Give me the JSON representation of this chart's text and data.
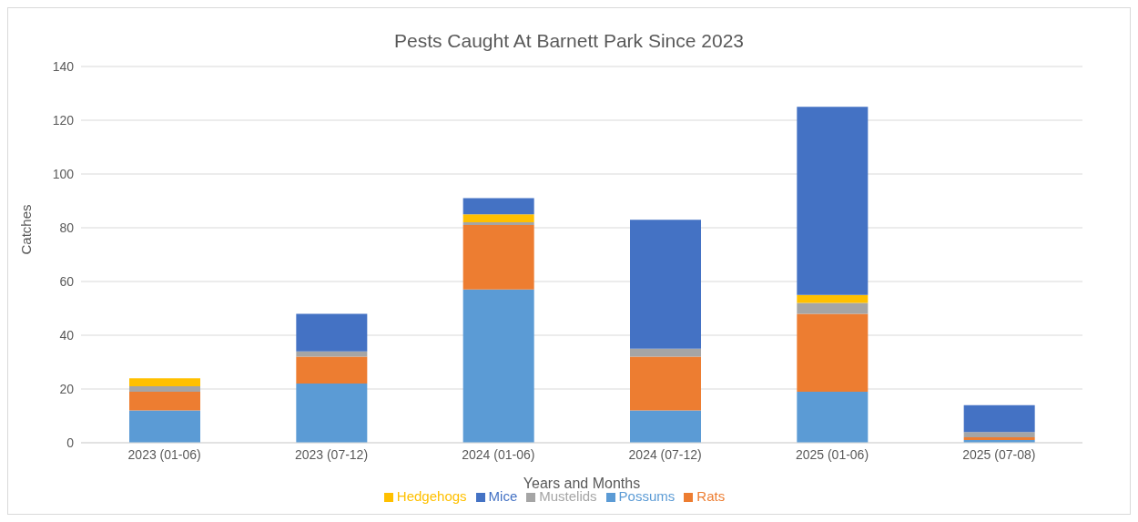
{
  "chart_data": {
    "type": "bar",
    "title": "Pests Caught At Barnett Park Since 2023",
    "xlabel": "Years and Months",
    "ylabel": "Catches",
    "categories": [
      "2023 (01-06)",
      "2023 (07-12)",
      "2024 (01-06)",
      "2024 (07-12)",
      "2025 (01-06)",
      "2025 (07-08)"
    ],
    "series": [
      {
        "name": "Possums",
        "color": "#5b9bd5",
        "values": [
          12,
          22,
          57,
          12,
          19,
          1
        ]
      },
      {
        "name": "Rats",
        "color": "#ed7d31",
        "values": [
          7,
          10,
          24,
          20,
          29,
          1
        ]
      },
      {
        "name": "Mustelids",
        "color": "#a5a5a5",
        "values": [
          2,
          2,
          1,
          3,
          4,
          2
        ]
      },
      {
        "name": "Hedgehogs",
        "color": "#ffc000",
        "values": [
          3,
          0,
          3,
          0,
          3,
          0
        ]
      },
      {
        "name": "Mice",
        "color": "#4472c4",
        "values": [
          0,
          14,
          6,
          48,
          70,
          10
        ]
      }
    ],
    "stacked": true,
    "ylim": [
      0,
      140
    ],
    "yticks": [
      0,
      20,
      40,
      60,
      80,
      100,
      120,
      140
    ],
    "grid": "y",
    "legend": "bottom"
  }
}
